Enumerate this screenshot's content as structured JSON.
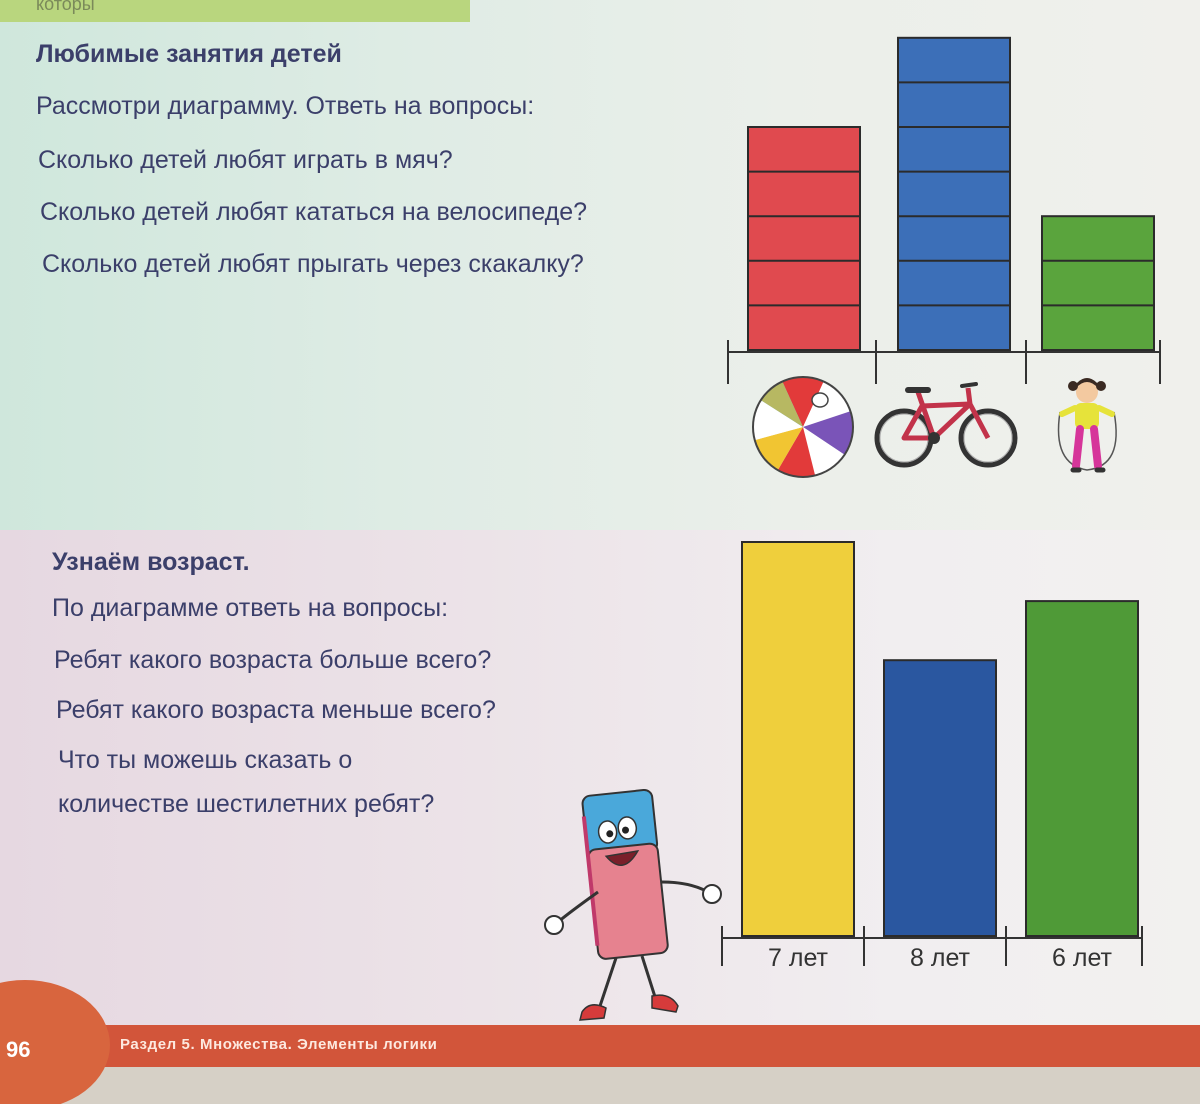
{
  "section1": {
    "title": "Любимые занятия детей",
    "lines": [
      "Рассмотри диаграмму. Ответь на вопросы:",
      "Сколько детей любят играть в мяч?",
      "Сколько детей любят кататься на велосипеде?",
      "Сколько детей любят прыгать через скакалку?"
    ]
  },
  "section2": {
    "title": "Узнаём возраст.",
    "lines": [
      "По диаграмме ответь на вопросы:",
      "Ребят какого возраста больше всего?",
      "Ребят какого возраста меньше всего?",
      "Что ты можешь сказать о",
      "количестве шестилетних ребят?"
    ]
  },
  "footer": {
    "page_number": "96",
    "section_label": "Раздел 5. Множества. Элементы логики"
  },
  "chart_data": [
    {
      "type": "bar",
      "categories": [
        "ball-icon",
        "bicycle-icon",
        "jump-rope-girl-icon"
      ],
      "values": [
        5,
        7,
        3
      ],
      "colors": [
        "#e04a4f",
        "#3c6fb8",
        "#5aa43d"
      ],
      "ylim": [
        0,
        7
      ],
      "segmented": true
    },
    {
      "type": "bar",
      "categories": [
        "7 лет",
        "8 лет",
        "6 лет"
      ],
      "values": [
        10,
        7,
        8.5
      ],
      "colors": [
        "#efcf3c",
        "#2a57a0",
        "#4f9a37"
      ],
      "ylim": [
        0,
        10
      ]
    }
  ]
}
